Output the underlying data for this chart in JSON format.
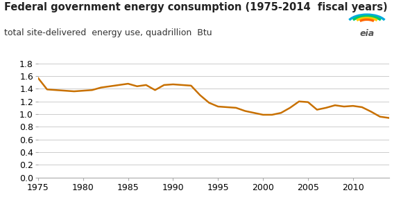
{
  "title": "Federal government energy consumption (1975-2014  fiscal years)",
  "subtitle": "total site-delivered  energy use, quadrillion  Btu",
  "line_color": "#C87000",
  "background_color": "#ffffff",
  "grid_color": "#cccccc",
  "ylim": [
    0.0,
    1.9
  ],
  "yticks": [
    0.0,
    0.2,
    0.4,
    0.6,
    0.8,
    1.0,
    1.2,
    1.4,
    1.6,
    1.8
  ],
  "xlim": [
    1975,
    2014
  ],
  "xticks": [
    1975,
    1980,
    1985,
    1990,
    1995,
    2000,
    2005,
    2010
  ],
  "years": [
    1975,
    1976,
    1977,
    1978,
    1979,
    1980,
    1981,
    1982,
    1983,
    1984,
    1985,
    1986,
    1987,
    1988,
    1989,
    1990,
    1991,
    1992,
    1993,
    1994,
    1995,
    1996,
    1997,
    1998,
    1999,
    2000,
    2001,
    2002,
    2003,
    2004,
    2005,
    2006,
    2007,
    2008,
    2009,
    2010,
    2011,
    2012,
    2013,
    2014
  ],
  "values": [
    1.57,
    1.39,
    1.38,
    1.37,
    1.36,
    1.37,
    1.38,
    1.42,
    1.44,
    1.46,
    1.48,
    1.44,
    1.46,
    1.38,
    1.46,
    1.47,
    1.46,
    1.45,
    1.3,
    1.18,
    1.12,
    1.11,
    1.1,
    1.05,
    1.02,
    0.99,
    0.99,
    1.02,
    1.1,
    1.2,
    1.19,
    1.07,
    1.1,
    1.14,
    1.12,
    1.13,
    1.11,
    1.04,
    0.96,
    0.94
  ],
  "title_fontsize": 10.5,
  "subtitle_fontsize": 9.0,
  "tick_fontsize": 9,
  "line_width": 1.8,
  "title_color": "#222222",
  "subtitle_color": "#333333",
  "spine_color": "#aaaaaa"
}
